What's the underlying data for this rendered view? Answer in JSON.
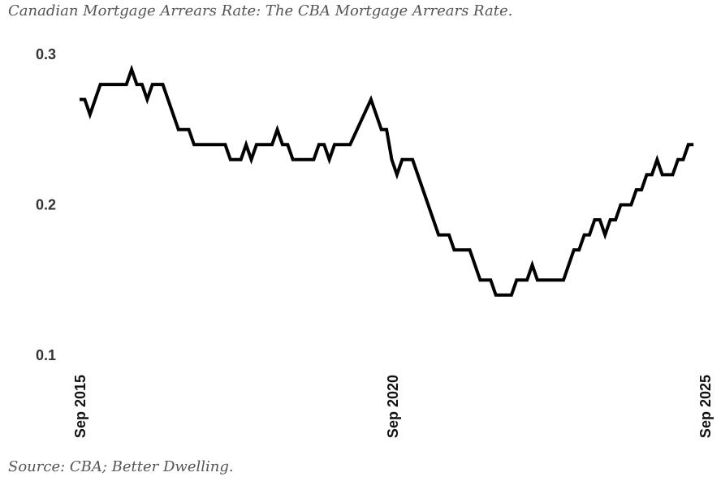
{
  "title": "Canadian Mortgage Arrears Rate: The CBA Mortgage Arrears Rate.",
  "source": "Source: CBA; Better Dwelling.",
  "chart_data": {
    "type": "line",
    "title": "Canadian Mortgage Arrears Rate: The CBA Mortgage Arrears Rate.",
    "xlabel": "",
    "ylabel": "",
    "x_tick_labels": [
      "Sep 2015",
      "Sep 2020",
      "Sep 2025"
    ],
    "y_tick_labels": [
      "0.1",
      "0.2",
      "0.3"
    ],
    "y_ticks": [
      0.1,
      0.2,
      0.3
    ],
    "ylim": [
      0.1,
      0.3
    ],
    "grid": false,
    "legend": "none",
    "line_color": "#000000",
    "series": [
      {
        "points": [
          [
            0,
            0.27
          ],
          [
            1,
            0.27
          ],
          [
            2,
            0.26
          ],
          [
            4,
            0.28
          ],
          [
            9,
            0.28
          ],
          [
            10,
            0.29
          ],
          [
            11,
            0.28
          ],
          [
            12,
            0.28
          ],
          [
            13,
            0.27
          ],
          [
            14,
            0.28
          ],
          [
            16,
            0.28
          ],
          [
            19,
            0.25
          ],
          [
            21,
            0.25
          ],
          [
            22,
            0.24
          ],
          [
            28,
            0.24
          ],
          [
            29,
            0.23
          ],
          [
            31,
            0.23
          ],
          [
            32,
            0.24
          ],
          [
            33,
            0.23
          ],
          [
            34,
            0.24
          ],
          [
            37,
            0.24
          ],
          [
            38,
            0.25
          ],
          [
            39,
            0.24
          ],
          [
            40,
            0.24
          ],
          [
            41,
            0.23
          ],
          [
            45,
            0.23
          ],
          [
            46,
            0.24
          ],
          [
            47,
            0.24
          ],
          [
            48,
            0.23
          ],
          [
            49,
            0.24
          ],
          [
            52,
            0.24
          ],
          [
            56,
            0.27
          ],
          [
            58,
            0.25
          ],
          [
            59,
            0.25
          ],
          [
            60,
            0.23
          ],
          [
            61,
            0.22
          ],
          [
            62,
            0.23
          ],
          [
            64,
            0.23
          ],
          [
            69,
            0.18
          ],
          [
            71,
            0.18
          ],
          [
            72,
            0.17
          ],
          [
            75,
            0.17
          ],
          [
            77,
            0.15
          ],
          [
            79,
            0.15
          ],
          [
            80,
            0.14
          ],
          [
            83,
            0.14
          ],
          [
            84,
            0.15
          ],
          [
            86,
            0.15
          ],
          [
            87,
            0.16
          ],
          [
            88,
            0.15
          ],
          [
            93,
            0.15
          ],
          [
            95,
            0.17
          ],
          [
            96,
            0.17
          ],
          [
            97,
            0.18
          ],
          [
            98,
            0.18
          ],
          [
            99,
            0.19
          ],
          [
            100,
            0.19
          ],
          [
            101,
            0.18
          ],
          [
            102,
            0.19
          ],
          [
            103,
            0.19
          ],
          [
            104,
            0.2
          ],
          [
            106,
            0.2
          ],
          [
            107,
            0.21
          ],
          [
            108,
            0.21
          ],
          [
            109,
            0.22
          ],
          [
            110,
            0.22
          ],
          [
            111,
            0.23
          ],
          [
            112,
            0.22
          ],
          [
            114,
            0.22
          ],
          [
            115,
            0.23
          ],
          [
            116,
            0.23
          ],
          [
            117,
            0.24
          ],
          [
            118,
            0.24
          ]
        ]
      }
    ]
  }
}
